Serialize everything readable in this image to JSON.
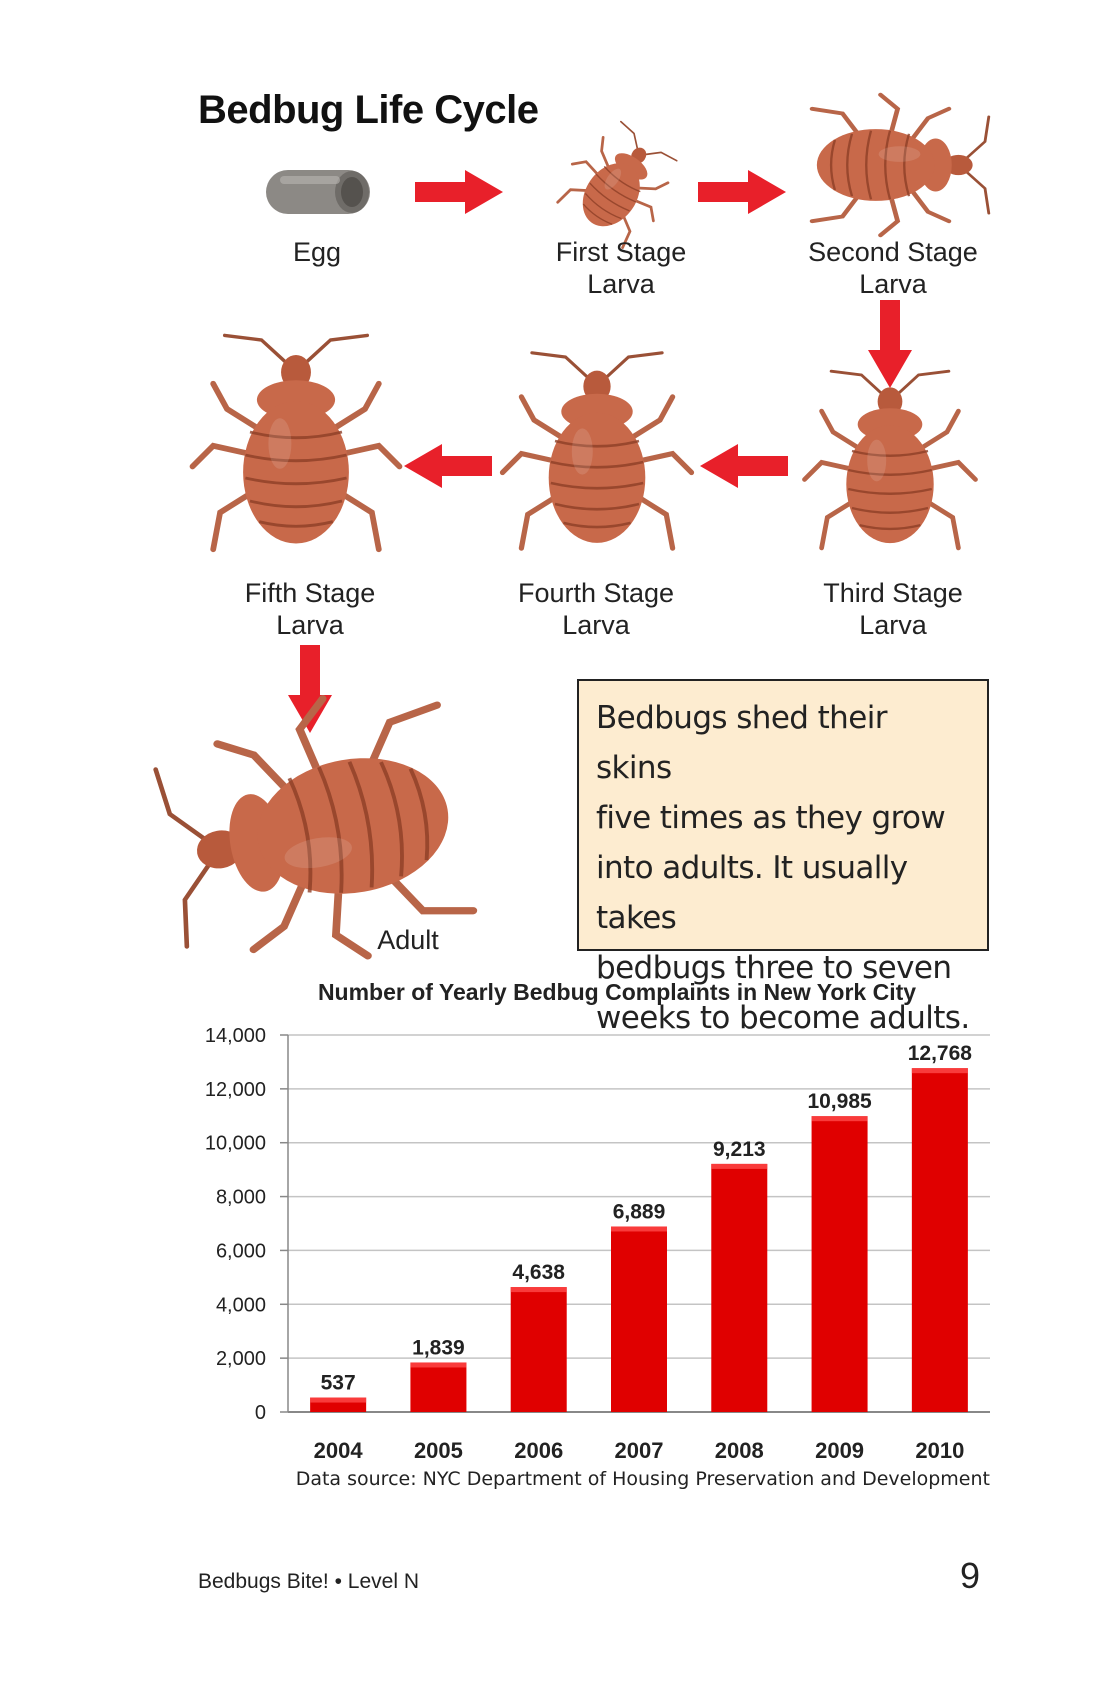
{
  "diagram": {
    "title": "Bedbug Life Cycle",
    "stages": [
      {
        "id": "egg",
        "label": "Egg"
      },
      {
        "id": "first",
        "label": "First Stage\nLarva"
      },
      {
        "id": "second",
        "label": "Second Stage\nLarva"
      },
      {
        "id": "third",
        "label": "Third Stage\nLarva"
      },
      {
        "id": "fourth",
        "label": "Fourth Stage\nLarva"
      },
      {
        "id": "fifth",
        "label": "Fifth Stage\nLarva"
      },
      {
        "id": "adult",
        "label": "Adult"
      }
    ],
    "colors": {
      "arrow": "#e8202a",
      "bug": "#c8694a",
      "bug_dark": "#8e3f27",
      "egg": "#8c8985"
    }
  },
  "note": {
    "lines": [
      "Bedbugs shed their skins",
      "five times as they grow",
      "into adults. It usually takes",
      "bedbugs three to seven",
      "weeks to become adults."
    ],
    "background": "#fdecd0"
  },
  "chart_data": {
    "type": "bar",
    "title": "Number of Yearly Bedbug Complaints in New York City",
    "categories": [
      "2004",
      "2005",
      "2006",
      "2007",
      "2008",
      "2009",
      "2010"
    ],
    "values": [
      537,
      1839,
      4638,
      6889,
      9213,
      10985,
      12768
    ],
    "data_labels": [
      "537",
      "1,839",
      "4,638",
      "6,889",
      "9,213",
      "10,985",
      "12,768"
    ],
    "ylim": [
      0,
      14000
    ],
    "yticks": [
      0,
      2000,
      4000,
      6000,
      8000,
      10000,
      12000,
      14000
    ],
    "ytick_labels": [
      "0",
      "2,000",
      "4,000",
      "6,000",
      "8,000",
      "10,000",
      "12,000",
      "14,000"
    ],
    "grid": true,
    "xlabel": "",
    "ylabel": "",
    "source": "Data source: NYC Department of Housing Preservation and Development",
    "bar_color": "#e00000"
  },
  "footer": {
    "book": "Bedbugs Bite! • Level N",
    "page_number": "9"
  }
}
